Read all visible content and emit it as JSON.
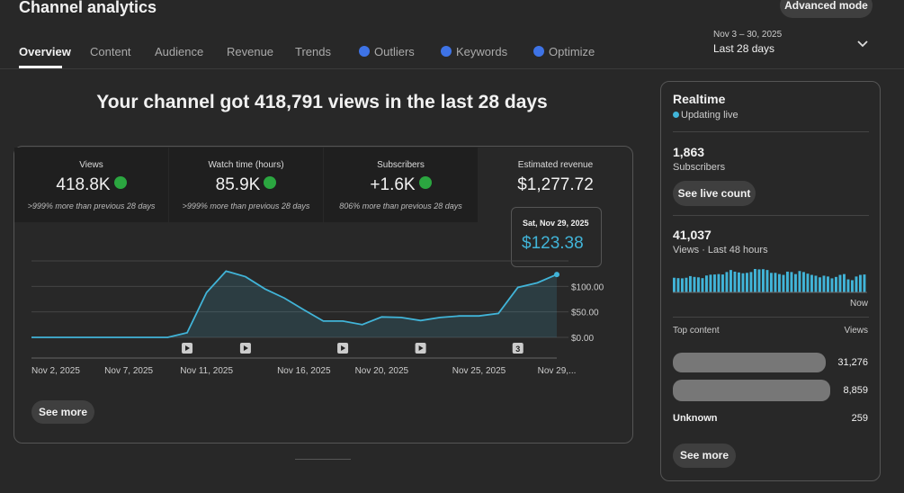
{
  "header": {
    "title": "Channel analytics",
    "advanced_button": "Advanced mode",
    "date_range": "Nov 3 – 30, 2025",
    "period": "Last 28 days"
  },
  "tabs": [
    "Overview",
    "Content",
    "Audience",
    "Revenue",
    "Trends",
    "Outliers",
    "Keywords",
    "Optimize"
  ],
  "headline": "Your channel got 418,791 views in the last 28 days",
  "metrics": [
    {
      "label": "Views",
      "value": "418.8K",
      "note": ">999% more than previous 28 days"
    },
    {
      "label": "Watch time (hours)",
      "value": "85.9K",
      "note": ">999% more than previous 28 days"
    },
    {
      "label": "Subscribers",
      "value": "+1.6K",
      "note": "806% more than previous 28 days"
    },
    {
      "label": "Estimated revenue",
      "value": "$1,277.72"
    }
  ],
  "tooltip": {
    "date": "Sat, Nov 29, 2025",
    "value": "$123.38"
  },
  "chart_data": {
    "type": "line",
    "categories": [
      "Nov 2, 2025",
      null,
      null,
      null,
      null,
      "Nov 7, 2025",
      null,
      null,
      null,
      "Nov 11, 2025",
      null,
      null,
      null,
      null,
      "Nov 16, 2025",
      null,
      null,
      null,
      "Nov 20, 2025",
      null,
      null,
      null,
      null,
      "Nov 25, 2025",
      null,
      null,
      null,
      "Nov 29,..."
    ],
    "values": [
      0,
      0,
      0,
      0,
      0,
      0,
      0,
      0,
      9,
      88,
      130,
      119,
      95,
      77,
      54,
      32,
      32,
      25,
      40,
      39,
      33,
      39,
      42,
      42,
      47,
      98,
      107,
      123.38
    ],
    "color": "#41b4d8",
    "ylim": [
      0,
      150
    ],
    "yticks": [
      {
        "value": 0,
        "label": "$0.00"
      },
      {
        "value": 50,
        "label": "$50.00"
      },
      {
        "value": 100,
        "label": "$100.00"
      }
    ],
    "video_count_label": "3"
  },
  "see_more": "See more",
  "realtime": {
    "title": "Realtime",
    "status": "Updating live",
    "subscribers": "1,863",
    "subscribers_label": "Subscribers",
    "live_button": "See live count",
    "views": "41,037",
    "views_label": "Views · Last 48 hours",
    "now_label": "Now",
    "bars": {
      "type": "bar",
      "color": "#41b4d8",
      "values": [
        720,
        700,
        690,
        720,
        800,
        760,
        740,
        700,
        830,
        870,
        880,
        900,
        880,
        1000,
        1100,
        1020,
        980,
        940,
        960,
        1000,
        1150,
        1130,
        1140,
        1100,
        960,
        960,
        900,
        860,
        1020,
        1000,
        900,
        1050,
        1000,
        920,
        860,
        820,
        740,
        820,
        780,
        690,
        760,
        860,
        900,
        640,
        600,
        780,
        860,
        880
      ]
    },
    "top_content_label": "Top content",
    "views_column": "Views",
    "rows": [
      {
        "views": "31,276"
      },
      {
        "views": "8,859"
      },
      {
        "name": "Unknown",
        "views": "259"
      }
    ],
    "see_more": "See more"
  }
}
